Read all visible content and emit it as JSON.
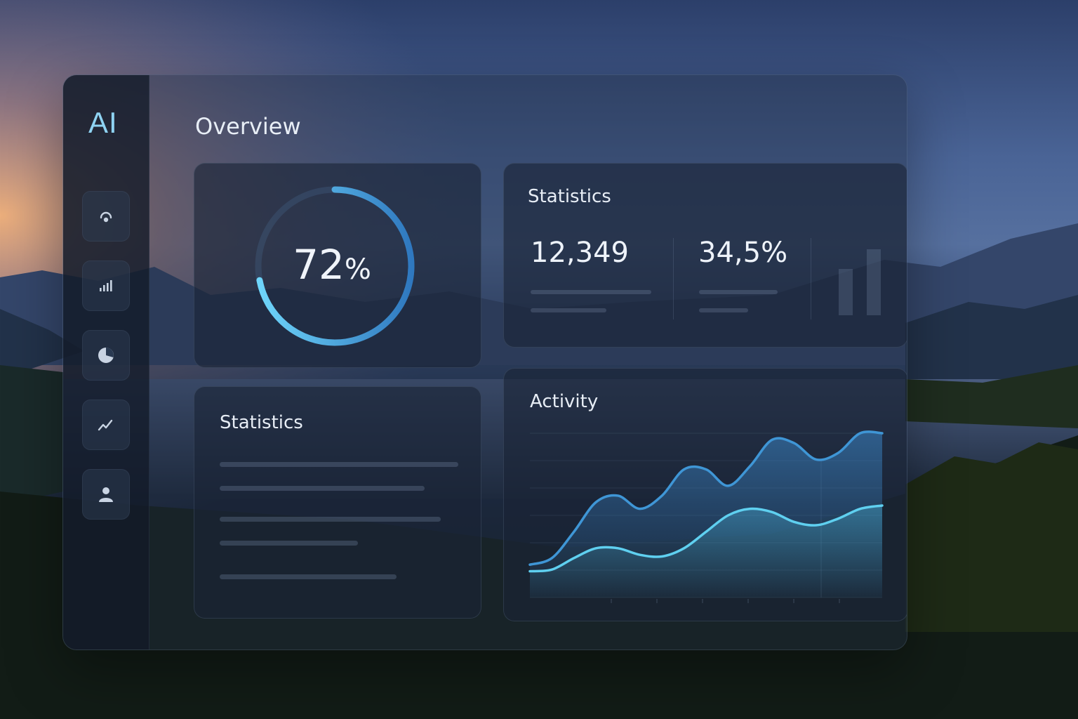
{
  "app": {
    "logo": "AI",
    "page_title": "Overview"
  },
  "sidebar": {
    "items": [
      {
        "icon": "headset-icon",
        "label": ""
      },
      {
        "icon": "bar-chart-icon",
        "label": ""
      },
      {
        "icon": "pie-chart-icon",
        "label": ""
      },
      {
        "icon": "trend-line-icon",
        "label": ""
      },
      {
        "icon": "user-icon",
        "label": ""
      }
    ]
  },
  "progress_card": {
    "value_number": "72",
    "value_unit": "%",
    "fraction": 0.72
  },
  "stats_card": {
    "title": "Statistics",
    "value_1": "12,349",
    "value_2": "34,5%",
    "mini_bars": [
      0.7,
      1.0
    ]
  },
  "stats_list_card": {
    "title": "Statistics"
  },
  "activity_card": {
    "title": "Activity"
  },
  "colors": {
    "accent": "#5cc8f2",
    "accent_dark": "#3a86c8",
    "text": "#e8eef6"
  },
  "chart_data": {
    "type": "area",
    "title": "Activity",
    "xlabel": "",
    "ylabel": "",
    "x": [
      0,
      1,
      2,
      3,
      4,
      5,
      6,
      7,
      8,
      9,
      10,
      11,
      12,
      13,
      14,
      15,
      16
    ],
    "ylim": [
      0,
      5
    ],
    "grid": true,
    "series": [
      {
        "values": [
          1.0,
          1.2,
          2.0,
          2.9,
          3.1,
          2.7,
          3.1,
          3.9,
          3.9,
          3.4,
          4.0,
          4.8,
          4.7,
          4.2,
          4.4,
          5.0,
          5.0
        ]
      },
      {
        "values": [
          0.8,
          0.85,
          1.2,
          1.5,
          1.5,
          1.3,
          1.25,
          1.5,
          2.0,
          2.5,
          2.7,
          2.6,
          2.3,
          2.2,
          2.4,
          2.7,
          2.8
        ]
      }
    ]
  }
}
